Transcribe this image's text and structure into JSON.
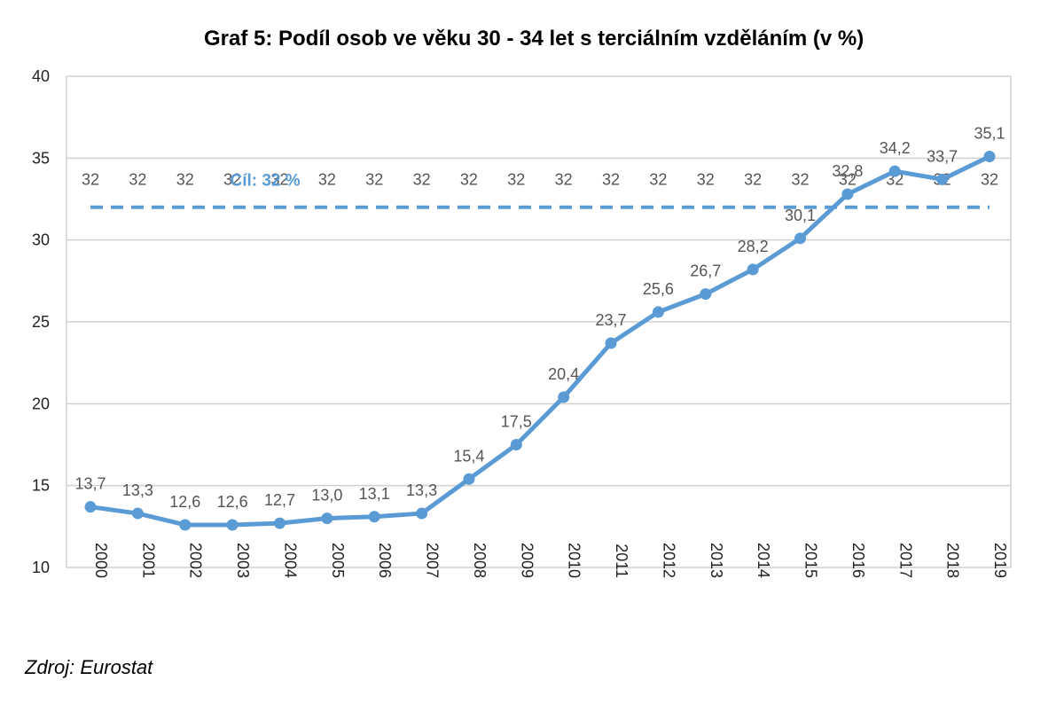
{
  "chart_data": {
    "type": "line",
    "title": "Graf 5: Podíl osob ve věku 30 - 34 let s terciálním vzděláním (v %)",
    "xlabel": "",
    "ylabel": "",
    "categories": [
      "2000",
      "2001",
      "2002",
      "2003",
      "2004",
      "2005",
      "2006",
      "2007",
      "2008",
      "2009",
      "2010",
      "2011",
      "2012",
      "2013",
      "2014",
      "2015",
      "2016",
      "2017",
      "2018",
      "2019"
    ],
    "ylim": [
      10,
      40
    ],
    "yticks": [
      10,
      15,
      20,
      25,
      30,
      35,
      40
    ],
    "grid": true,
    "series": [
      {
        "name": "",
        "values": [
          13.7,
          13.3,
          12.6,
          12.6,
          12.7,
          13.0,
          13.1,
          13.3,
          15.4,
          17.5,
          20.4,
          23.7,
          25.6,
          26.7,
          28.2,
          30.1,
          32.8,
          34.2,
          33.7,
          35.1
        ],
        "labels": [
          "13,7",
          "13,3",
          "12,6",
          "12,6",
          "12,7",
          "13,0",
          "13,1",
          "13,3",
          "15,4",
          "17,5",
          "20,4",
          "23,7",
          "25,6",
          "26,7",
          "28,2",
          "30,1",
          "32,8",
          "34,2",
          "33,7",
          "35,1"
        ],
        "color": "#5b9bd5",
        "style": "solid-markers"
      },
      {
        "name": "",
        "values": [
          32,
          32,
          32,
          32,
          32,
          32,
          32,
          32,
          32,
          32,
          32,
          32,
          32,
          32,
          32,
          32,
          32,
          32,
          32,
          32
        ],
        "labels": [
          "32",
          "32",
          "32",
          "32",
          "32",
          "32",
          "32",
          "32",
          "32",
          "32",
          "32",
          "32",
          "32",
          "32",
          "32",
          "32",
          "32",
          "32",
          "32",
          "32"
        ],
        "color": "#5b9bd5",
        "style": "dashed"
      }
    ],
    "annotations": [
      {
        "text": "Cíl: 32 %",
        "x": "2003",
        "y": 32
      }
    ]
  },
  "source": "Zdroj: Eurostat"
}
